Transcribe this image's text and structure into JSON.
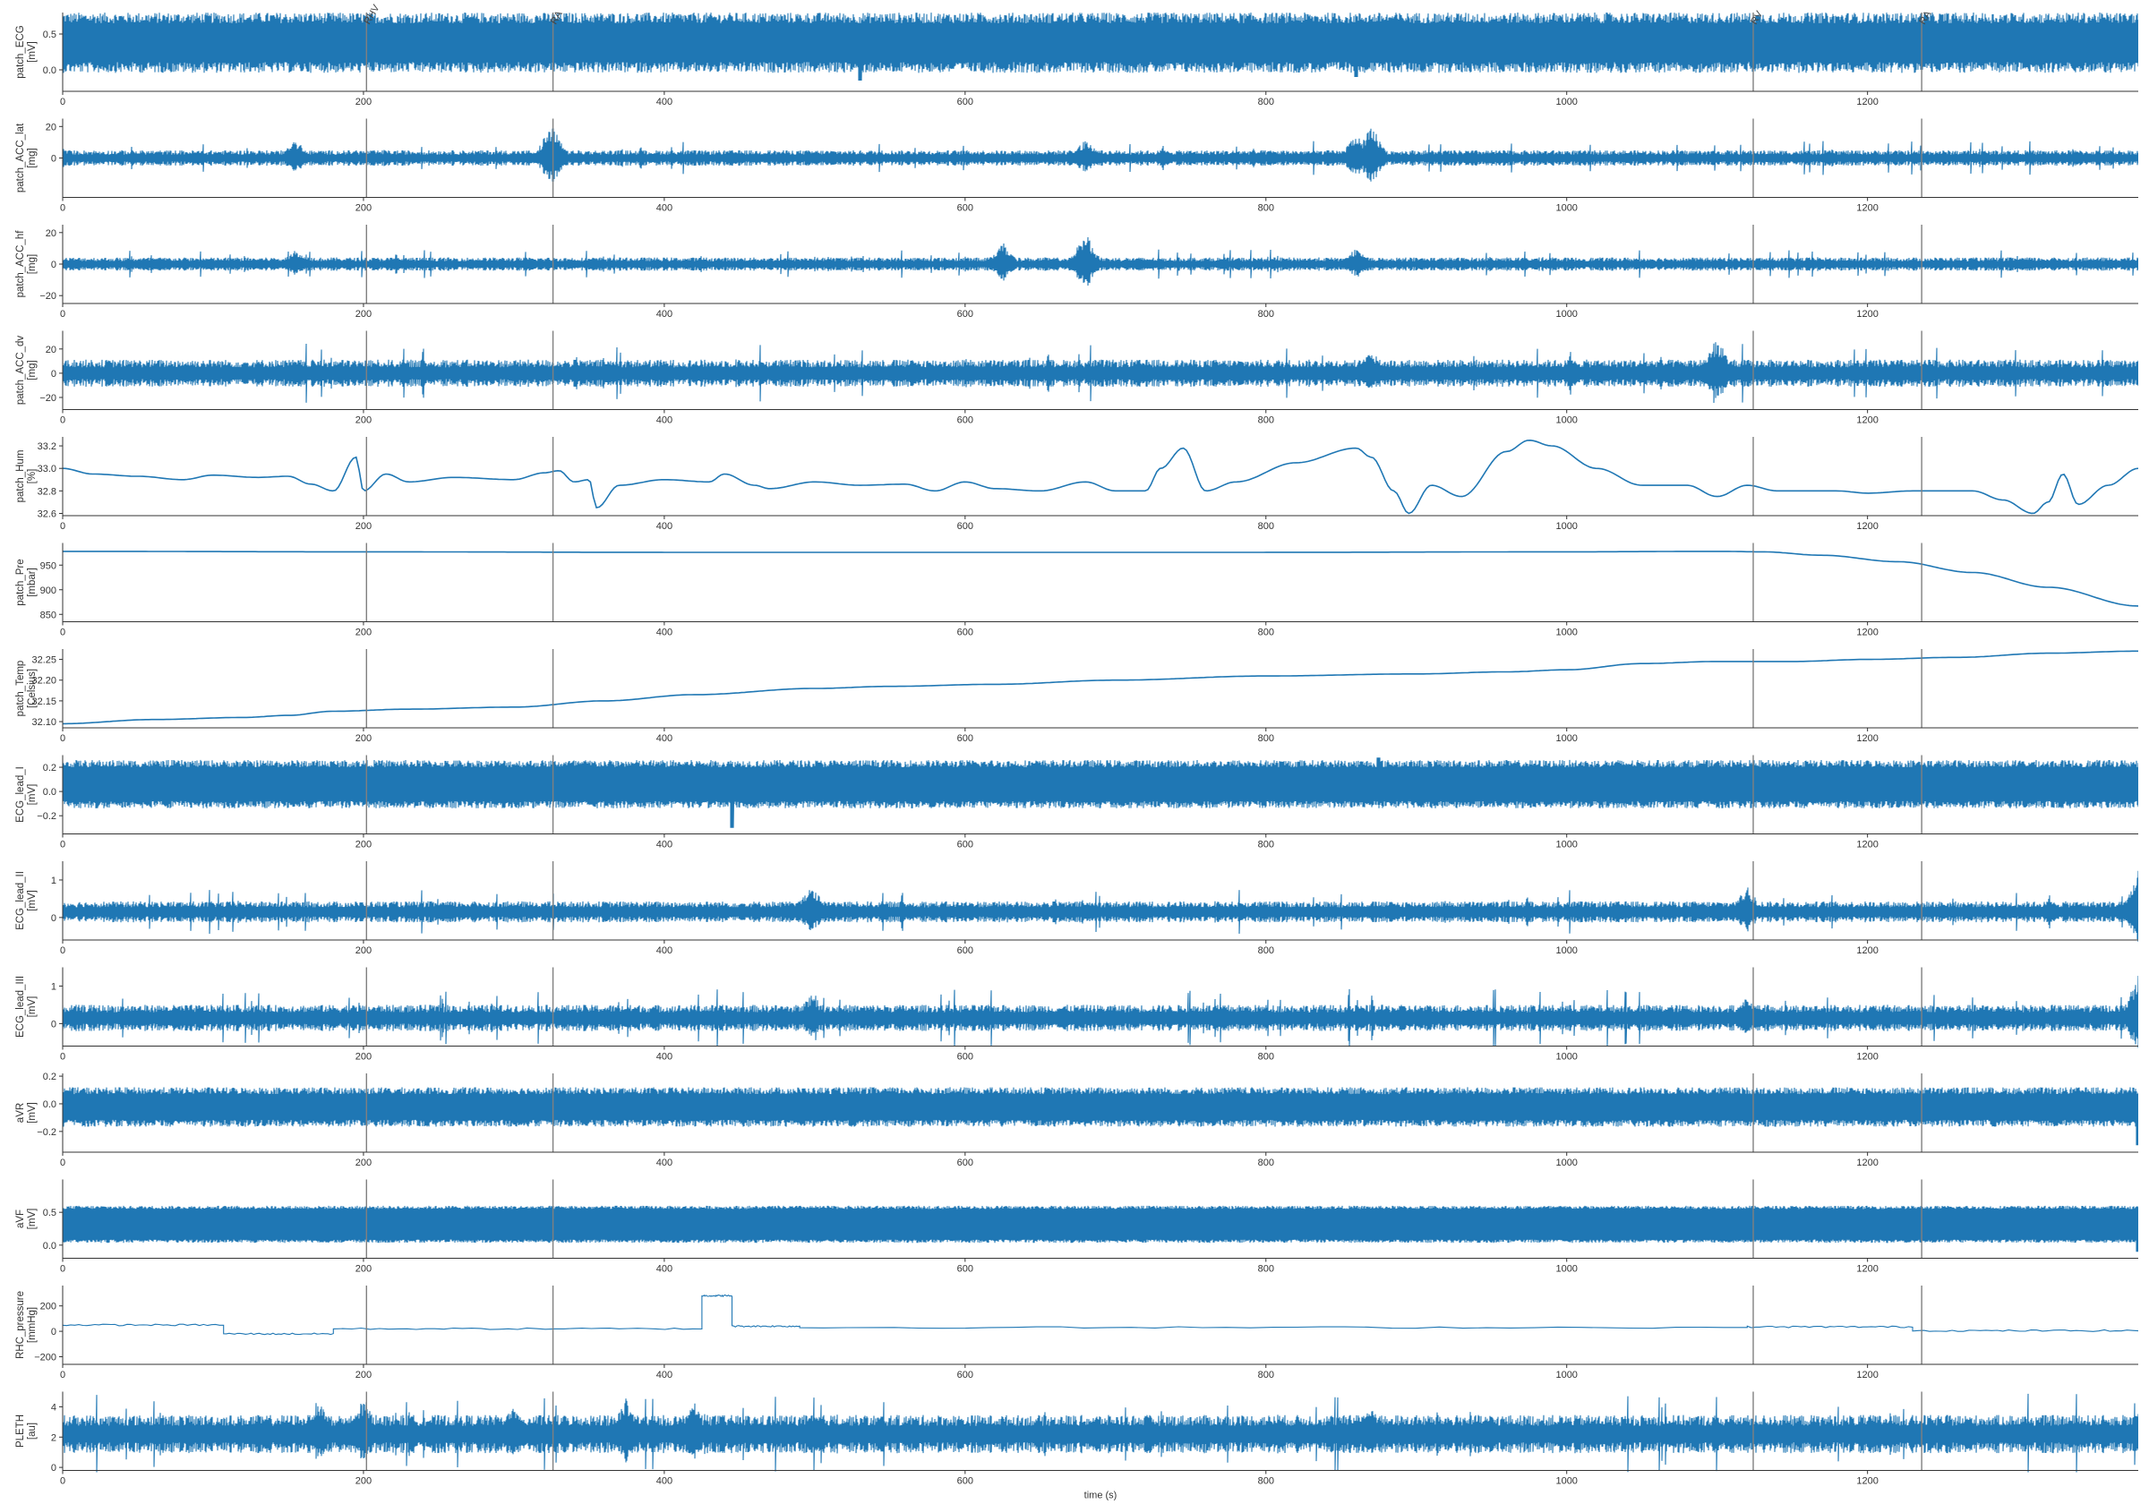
{
  "chart_data": [
    {
      "type": "line",
      "ylabel": "patch_ECG\n[mV]",
      "ylim": [
        -0.3,
        0.8
      ],
      "yticks": [
        -0.0,
        0.5
      ],
      "ytick_labels": [
        "0.0",
        "0.5"
      ],
      "signal": {
        "kind": "dense",
        "center": 0.3,
        "amp": 0.35,
        "noise": 0.15,
        "spikes": [
          [
            530,
            -0.15
          ],
          [
            860,
            -0.1
          ]
        ]
      }
    },
    {
      "type": "line",
      "ylabel": "patch_ACC_lat\n[mg]",
      "ylim": [
        -25,
        25
      ],
      "yticks": [
        0,
        20
      ],
      "ytick_labels": [
        "0",
        "20"
      ],
      "signal": {
        "kind": "noise",
        "center": 0,
        "amp": 3.5,
        "bursts": [
          [
            155,
            12
          ],
          [
            325,
            22
          ],
          [
            680,
            12
          ],
          [
            860,
            15
          ],
          [
            870,
            22
          ]
        ]
      }
    },
    {
      "type": "line",
      "ylabel": "patch_ACC_hf\n[mg]",
      "ylim": [
        -25,
        25
      ],
      "yticks": [
        -20,
        0,
        20
      ],
      "ytick_labels": [
        "−20",
        "0",
        "20"
      ],
      "signal": {
        "kind": "noise",
        "center": 0,
        "amp": 3,
        "bursts": [
          [
            155,
            10
          ],
          [
            625,
            14
          ],
          [
            680,
            20
          ],
          [
            860,
            10
          ]
        ]
      }
    },
    {
      "type": "line",
      "ylabel": "patch_ACC_dv\n[mg]",
      "ylim": [
        -30,
        35
      ],
      "yticks": [
        -20,
        0,
        20
      ],
      "ytick_labels": [
        "−20",
        "0",
        "20"
      ],
      "signal": {
        "kind": "noise",
        "center": 0,
        "amp": 8,
        "bursts": [
          [
            1100,
            30
          ],
          [
            870,
            20
          ]
        ]
      }
    },
    {
      "type": "line",
      "ylabel": "patch_Hum\n[%]",
      "ylim": [
        32.58,
        33.28
      ],
      "yticks": [
        32.6,
        32.8,
        33.0,
        33.2
      ],
      "ytick_labels": [
        "32.6",
        "32.8",
        "33.0",
        "33.2"
      ],
      "signal": {
        "kind": "curve",
        "points": [
          [
            0,
            33.0
          ],
          [
            20,
            32.95
          ],
          [
            50,
            32.93
          ],
          [
            80,
            32.9
          ],
          [
            100,
            32.94
          ],
          [
            130,
            32.92
          ],
          [
            150,
            32.93
          ],
          [
            165,
            32.86
          ],
          [
            180,
            32.8
          ],
          [
            195,
            33.1
          ],
          [
            200,
            32.8
          ],
          [
            215,
            32.95
          ],
          [
            230,
            32.88
          ],
          [
            260,
            32.92
          ],
          [
            300,
            32.9
          ],
          [
            320,
            32.96
          ],
          [
            330,
            32.98
          ],
          [
            340,
            32.88
          ],
          [
            350,
            32.9
          ],
          [
            355,
            32.65
          ],
          [
            370,
            32.85
          ],
          [
            400,
            32.9
          ],
          [
            430,
            32.88
          ],
          [
            440,
            32.95
          ],
          [
            460,
            32.85
          ],
          [
            470,
            32.82
          ],
          [
            500,
            32.88
          ],
          [
            530,
            32.85
          ],
          [
            560,
            32.86
          ],
          [
            580,
            32.8
          ],
          [
            600,
            32.88
          ],
          [
            620,
            32.82
          ],
          [
            650,
            32.8
          ],
          [
            680,
            32.88
          ],
          [
            700,
            32.8
          ],
          [
            720,
            32.8
          ],
          [
            730,
            33.0
          ],
          [
            745,
            33.18
          ],
          [
            760,
            32.8
          ],
          [
            780,
            32.88
          ],
          [
            820,
            33.05
          ],
          [
            860,
            33.18
          ],
          [
            870,
            33.1
          ],
          [
            885,
            32.8
          ],
          [
            895,
            32.6
          ],
          [
            910,
            32.85
          ],
          [
            930,
            32.75
          ],
          [
            960,
            33.15
          ],
          [
            975,
            33.25
          ],
          [
            990,
            33.2
          ],
          [
            1020,
            33.0
          ],
          [
            1050,
            32.85
          ],
          [
            1080,
            32.85
          ],
          [
            1100,
            32.75
          ],
          [
            1120,
            32.85
          ],
          [
            1140,
            32.8
          ],
          [
            1180,
            32.8
          ],
          [
            1200,
            32.78
          ],
          [
            1230,
            32.8
          ],
          [
            1270,
            32.8
          ],
          [
            1290,
            32.72
          ],
          [
            1310,
            32.6
          ],
          [
            1320,
            32.7
          ],
          [
            1330,
            32.95
          ],
          [
            1340,
            32.68
          ],
          [
            1360,
            32.85
          ],
          [
            1380,
            33.0
          ]
        ]
      }
    },
    {
      "type": "line",
      "ylabel": "patch_Pre\n[mbar]",
      "ylim": [
        835,
        995
      ],
      "yticks": [
        850,
        900,
        950
      ],
      "ytick_labels": [
        "850",
        "900",
        "950"
      ],
      "signal": {
        "kind": "curve",
        "points": [
          [
            0,
            978
          ],
          [
            200,
            977
          ],
          [
            400,
            976
          ],
          [
            600,
            976
          ],
          [
            800,
            976
          ],
          [
            1000,
            977
          ],
          [
            1100,
            978
          ],
          [
            1130,
            977
          ],
          [
            1170,
            970
          ],
          [
            1220,
            957
          ],
          [
            1270,
            935
          ],
          [
            1320,
            905
          ],
          [
            1380,
            867
          ]
        ]
      }
    },
    {
      "type": "line",
      "ylabel": "patch_Temp\n[Celsius]",
      "ylim": [
        32.085,
        32.275
      ],
      "yticks": [
        32.1,
        32.15,
        32.2,
        32.25
      ],
      "ytick_labels": [
        "32.10",
        "32.15",
        "32.20",
        "32.25"
      ],
      "signal": {
        "kind": "curve",
        "points": [
          [
            0,
            32.095
          ],
          [
            60,
            32.105
          ],
          [
            120,
            32.11
          ],
          [
            150,
            32.115
          ],
          [
            180,
            32.125
          ],
          [
            230,
            32.13
          ],
          [
            300,
            32.135
          ],
          [
            360,
            32.15
          ],
          [
            420,
            32.165
          ],
          [
            500,
            32.18
          ],
          [
            550,
            32.185
          ],
          [
            620,
            32.19
          ],
          [
            700,
            32.2
          ],
          [
            800,
            32.21
          ],
          [
            900,
            32.215
          ],
          [
            960,
            32.22
          ],
          [
            1000,
            32.225
          ],
          [
            1050,
            32.24
          ],
          [
            1100,
            32.245
          ],
          [
            1150,
            32.245
          ],
          [
            1200,
            32.25
          ],
          [
            1260,
            32.255
          ],
          [
            1320,
            32.265
          ],
          [
            1380,
            32.27
          ]
        ]
      }
    },
    {
      "type": "line",
      "ylabel": "ECG_lead_I\n[mV]",
      "ylim": [
        -0.35,
        0.3
      ],
      "yticks": [
        -0.2,
        0,
        0.2
      ],
      "ytick_labels": [
        "−0.2",
        "0.0",
        "0.2"
      ],
      "signal": {
        "kind": "dense",
        "center": 0.02,
        "amp": 0.18,
        "noise": 0.06,
        "spikes": [
          [
            445,
            -0.3
          ],
          [
            875,
            0.28
          ]
        ]
      }
    },
    {
      "type": "line",
      "ylabel": "ECG_lead_II\n[mV]",
      "ylim": [
        -0.6,
        1.5
      ],
      "yticks": [
        0,
        1
      ],
      "ytick_labels": [
        "0",
        "1"
      ],
      "signal": {
        "kind": "noise",
        "center": 0.15,
        "amp": 0.2,
        "bursts": [
          [
            498,
            -0.8
          ],
          [
            1120,
            -0.7
          ],
          [
            1380,
            1.1
          ]
        ]
      }
    },
    {
      "type": "line",
      "ylabel": "ECG_lead_III\n[mV]",
      "ylim": [
        -0.6,
        1.5
      ],
      "yticks": [
        0,
        1
      ],
      "ytick_labels": [
        "0",
        "1"
      ],
      "signal": {
        "kind": "noise",
        "center": 0.15,
        "amp": 0.25,
        "bursts": [
          [
            498,
            -0.7
          ],
          [
            1120,
            -0.6
          ],
          [
            1380,
            1.2
          ]
        ]
      }
    },
    {
      "type": "line",
      "ylabel": "aVR\n[mV]",
      "ylim": [
        -0.35,
        0.22
      ],
      "yticks": [
        -0.2,
        0,
        0.2
      ],
      "ytick_labels": [
        "−0.2",
        "0.0",
        "0.2"
      ],
      "signal": {
        "kind": "dense",
        "center": -0.05,
        "amp": 0.12,
        "noise": 0.05,
        "spikes": [
          [
            1380,
            -0.3
          ]
        ]
      }
    },
    {
      "type": "line",
      "ylabel": "aVF\n[mV]",
      "ylim": [
        -0.2,
        1.0
      ],
      "yticks": [
        0,
        0.5
      ],
      "ytick_labels": [
        "0.0",
        "0.5"
      ],
      "signal": {
        "kind": "dense",
        "center": 0.25,
        "amp": 0.3,
        "noise": 0.05,
        "spikes": [
          [
            1380,
            -0.1
          ]
        ]
      }
    },
    {
      "type": "line",
      "ylabel": "RHC_pressure\n[mmHg]",
      "ylim": [
        -260,
        360
      ],
      "yticks": [
        -200,
        0,
        200
      ],
      "ytick_labels": [
        "−200",
        "0",
        "200"
      ],
      "signal": {
        "kind": "step",
        "segments": [
          [
            0,
            107,
            50
          ],
          [
            107,
            180,
            -20
          ],
          [
            180,
            425,
            20
          ],
          [
            425,
            445,
            280
          ],
          [
            445,
            490,
            40
          ],
          [
            490,
            1120,
            30
          ],
          [
            1120,
            1230,
            35
          ],
          [
            1230,
            1380,
            5
          ]
        ]
      }
    },
    {
      "type": "line",
      "ylabel": "PLETH\n[au]",
      "ylim": [
        -0.2,
        5
      ],
      "yticks": [
        0,
        2,
        4
      ],
      "ytick_labels": [
        "0",
        "2",
        "4"
      ],
      "signal": {
        "kind": "noise",
        "center": 2.2,
        "amp": 0.9,
        "bursts": [
          [
            170,
            2.5
          ],
          [
            200,
            2.5
          ],
          [
            300,
            2.0
          ],
          [
            375,
            2.5
          ],
          [
            420,
            2.2
          ],
          [
            870,
            2.0
          ],
          [
            1380,
            1.5
          ]
        ]
      }
    }
  ],
  "x_axis": {
    "xlim": [
      0,
      1380
    ],
    "xticks": [
      0,
      200,
      400,
      600,
      800,
      1000,
      1200
    ],
    "xtick_labels": [
      "0",
      "200",
      "400",
      "600",
      "800",
      "1000",
      "1200"
    ],
    "xlabel": "time (s)"
  },
  "events": [
    {
      "x": 202,
      "label": "RHV"
    },
    {
      "x": 326,
      "label": "RA"
    },
    {
      "x": 1124,
      "label": "RV"
    },
    {
      "x": 1236,
      "label": "RA"
    }
  ],
  "colors": {
    "line": "#1f77b4",
    "event": "#808080",
    "axis": "#333333"
  }
}
